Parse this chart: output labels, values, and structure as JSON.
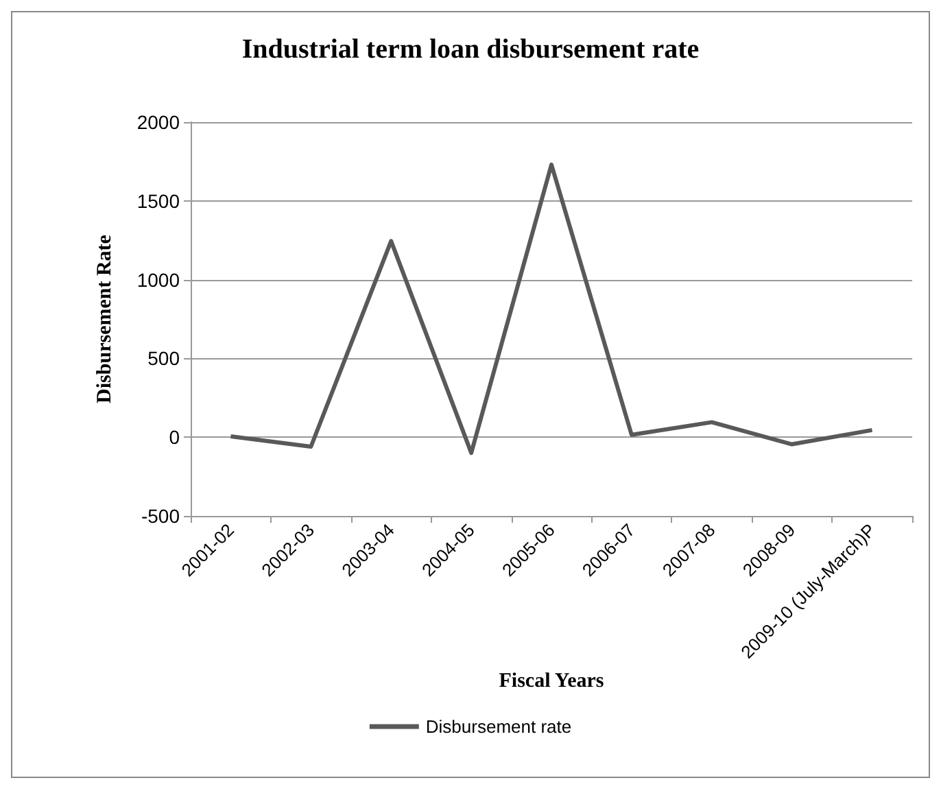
{
  "chart_data": {
    "type": "line",
    "title": "Industrial term loan disbursement rate",
    "xlabel": "Fiscal Years",
    "ylabel": "Disbursement Rate",
    "categories": [
      "2001-02",
      "2002-03",
      "2003-04",
      "2004-05",
      "2005-06",
      "2006-07",
      "2007-08",
      "2008-09",
      "2009-10 (July-March)P"
    ],
    "series": [
      {
        "name": "Disbursement rate",
        "color": "#595959",
        "values": [
          5,
          -60,
          1245,
          -100,
          1730,
          15,
          95,
          -45,
          45
        ]
      }
    ],
    "ylim": [
      -500,
      2000
    ],
    "yticks": [
      -500,
      0,
      500,
      1000,
      1500,
      2000
    ],
    "grid": "y",
    "legend": "bottom",
    "marker": "none",
    "line_style": "solid"
  }
}
